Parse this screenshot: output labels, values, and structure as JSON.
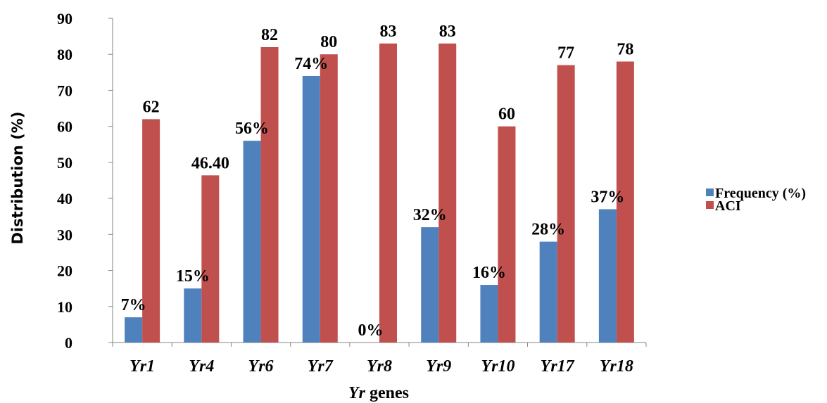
{
  "chart_data": {
    "type": "bar",
    "categories": [
      "Yr1",
      "Yr4",
      "Yr6",
      "Yr7",
      "Yr8",
      "Yr9",
      "Yr10",
      "Yr17",
      "Yr18"
    ],
    "series": [
      {
        "name": "Frequency (%)",
        "color": "#4F81BD",
        "values": [
          7,
          15,
          56,
          74,
          0,
          32,
          16,
          28,
          37
        ],
        "labels": [
          "7%",
          "15%",
          "56%",
          "74%",
          "0%",
          "32%",
          "16%",
          "28%",
          "37%"
        ]
      },
      {
        "name": "ACI",
        "color": "#C0504D",
        "values": [
          62,
          46.4,
          82,
          80,
          83,
          83,
          60,
          77,
          78
        ],
        "labels": [
          "62",
          "46.40",
          "82",
          "80",
          "83",
          "83",
          "60",
          "77",
          "78"
        ]
      }
    ],
    "yticks": [
      "0",
      "10",
      "20",
      "30",
      "40",
      "50",
      "60",
      "70",
      "80",
      "90"
    ],
    "ylim": [
      0,
      90
    ],
    "ylabel": "Distribution (%)",
    "xlabel_italic": "Yr",
    "xlabel_rest": " genes",
    "grid": false,
    "legend_position": "right"
  }
}
